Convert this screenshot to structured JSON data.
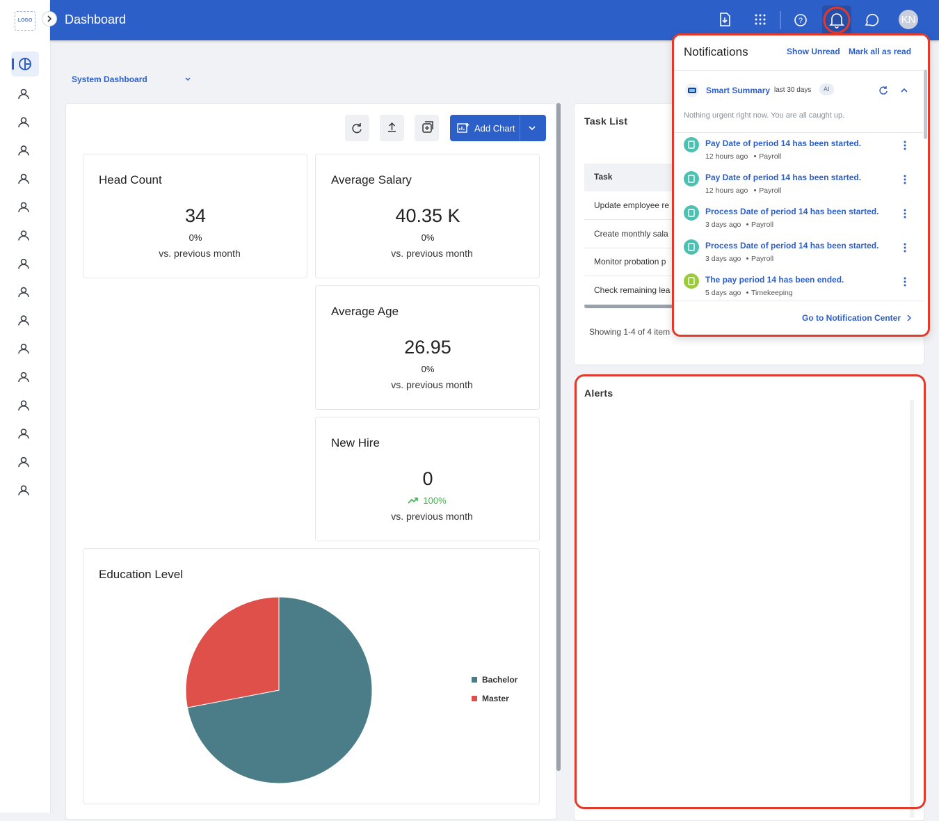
{
  "header": {
    "logo": "LOGO",
    "title": "Dashboard",
    "avatar": "KN"
  },
  "dashboard_selector": "System Dashboard",
  "toolbar": {
    "add_chart": "Add Chart"
  },
  "kpis": [
    {
      "title": "Head Count",
      "value": "34",
      "change": "0%",
      "caption": "vs. previous month"
    },
    {
      "title": "Average Salary",
      "value": "40.35 K",
      "change": "0%",
      "caption": "vs. previous month"
    },
    {
      "title": "Average Age",
      "value": "26.95",
      "change": "0%",
      "caption": "vs. previous month"
    },
    {
      "title": "New Hire",
      "value": "0",
      "change": "100%",
      "caption": "vs. previous month",
      "trend": "up"
    }
  ],
  "chart_data": {
    "type": "pie",
    "title": "Education Level",
    "categories": [
      "Bachelor",
      "Master"
    ],
    "values": [
      72,
      28
    ],
    "colors": [
      "#4b7d88",
      "#e0504a"
    ]
  },
  "task_list": {
    "title": "Task List",
    "header": "Task",
    "rows": [
      "Update employee re",
      "Create monthly sala",
      "Monitor probation p",
      "Check remaining lea"
    ],
    "footer": "Showing 1-4 of 4 item"
  },
  "alerts": {
    "title": "Alerts"
  },
  "notifications": {
    "title": "Notifications",
    "show_unread": "Show Unread",
    "mark_all_read": "Mark all as read",
    "summary": {
      "title": "Smart Summary",
      "period": "last 30 days",
      "badge": "AI",
      "text": "Nothing urgent right now. You are all caught up."
    },
    "items": [
      {
        "text": "Pay Date of period 14 has been started.",
        "time": "12 hours ago",
        "source": "Payroll",
        "icon_color": "#4cc1b2"
      },
      {
        "text": "Pay Date of period 14 has been started.",
        "time": "12 hours ago",
        "source": "Payroll",
        "icon_color": "#4cc1b2"
      },
      {
        "text": "Process Date of period 14 has been started.",
        "time": "3 days ago",
        "source": "Payroll",
        "icon_color": "#4cc1b2"
      },
      {
        "text": "Process Date of period 14 has been started.",
        "time": "3 days ago",
        "source": "Payroll",
        "icon_color": "#4cc1b2"
      },
      {
        "text": "The pay period 14 has been ended.",
        "time": "5 days ago",
        "source": "Timekeeping",
        "icon_color": "#9bcb3b"
      }
    ],
    "footer": "Go to Notification Center"
  }
}
